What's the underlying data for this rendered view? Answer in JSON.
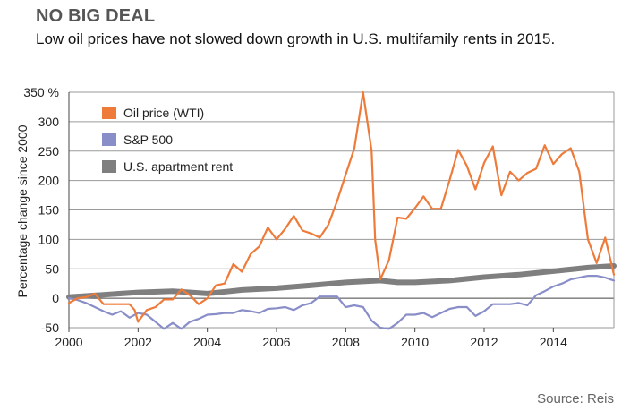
{
  "header": {
    "headline": "NO BIG DEAL",
    "subtitle": "Low oil prices have not slowed down growth in U.S. multifamily rents in 2015."
  },
  "footer": {
    "source": "Source: Reis"
  },
  "chart_data": {
    "type": "line",
    "title": "NO BIG DEAL",
    "subtitle": "Low oil prices have not slowed down growth in U.S. multifamily rents in 2015.",
    "xlabel": "",
    "ylabel": "Percentage change since 2000",
    "xlim": [
      2000,
      2015.75
    ],
    "ylim": [
      -50,
      350
    ],
    "x_ticks": [
      2000,
      2002,
      2004,
      2006,
      2008,
      2010,
      2012,
      2014
    ],
    "y_ticks": [
      -50,
      0,
      50,
      100,
      150,
      200,
      250,
      300,
      350
    ],
    "y_tick_labels": [
      "-50",
      "0",
      "50",
      "100",
      "150",
      "200",
      "250",
      "300",
      "350 %"
    ],
    "grid": "horizontal",
    "legend_position": "top-left",
    "series": [
      {
        "name": "Oil price (WTI)",
        "color": "#ee7b3a",
        "points": [
          [
            2000,
            -8
          ],
          [
            2000.25,
            0
          ],
          [
            2000.5,
            2
          ],
          [
            2000.75,
            8
          ],
          [
            2001,
            -10
          ],
          [
            2001.25,
            -10
          ],
          [
            2001.5,
            -10
          ],
          [
            2001.75,
            -10
          ],
          [
            2001.9,
            -20
          ],
          [
            2002,
            -40
          ],
          [
            2002.25,
            -20
          ],
          [
            2002.5,
            -15
          ],
          [
            2002.75,
            -2
          ],
          [
            2003,
            -2
          ],
          [
            2003.25,
            15
          ],
          [
            2003.5,
            5
          ],
          [
            2003.75,
            -10
          ],
          [
            2004,
            0
          ],
          [
            2004.25,
            22
          ],
          [
            2004.5,
            25
          ],
          [
            2004.75,
            58
          ],
          [
            2005,
            45
          ],
          [
            2005.25,
            75
          ],
          [
            2005.5,
            88
          ],
          [
            2005.75,
            120
          ],
          [
            2006,
            100
          ],
          [
            2006.25,
            118
          ],
          [
            2006.5,
            140
          ],
          [
            2006.75,
            115
          ],
          [
            2007,
            110
          ],
          [
            2007.25,
            103
          ],
          [
            2007.5,
            125
          ],
          [
            2007.75,
            165
          ],
          [
            2008,
            210
          ],
          [
            2008.25,
            255
          ],
          [
            2008.5,
            350
          ],
          [
            2008.75,
            250
          ],
          [
            2008.85,
            100
          ],
          [
            2009,
            32
          ],
          [
            2009.25,
            65
          ],
          [
            2009.5,
            137
          ],
          [
            2009.75,
            135
          ],
          [
            2010,
            153
          ],
          [
            2010.25,
            173
          ],
          [
            2010.5,
            152
          ],
          [
            2010.75,
            152
          ],
          [
            2011,
            200
          ],
          [
            2011.25,
            252
          ],
          [
            2011.5,
            225
          ],
          [
            2011.75,
            185
          ],
          [
            2012,
            230
          ],
          [
            2012.25,
            258
          ],
          [
            2012.5,
            175
          ],
          [
            2012.75,
            215
          ],
          [
            2013,
            200
          ],
          [
            2013.25,
            213
          ],
          [
            2013.5,
            220
          ],
          [
            2013.75,
            260
          ],
          [
            2014,
            228
          ],
          [
            2014.25,
            245
          ],
          [
            2014.5,
            255
          ],
          [
            2014.75,
            215
          ],
          [
            2015,
            100
          ],
          [
            2015.25,
            60
          ],
          [
            2015.5,
            103
          ],
          [
            2015.75,
            40
          ]
        ]
      },
      {
        "name": "S&P 500",
        "color": "#8a8ec8",
        "points": [
          [
            2000,
            0
          ],
          [
            2000.25,
            -3
          ],
          [
            2000.5,
            -8
          ],
          [
            2000.75,
            -15
          ],
          [
            2001,
            -22
          ],
          [
            2001.25,
            -28
          ],
          [
            2001.5,
            -22
          ],
          [
            2001.75,
            -33
          ],
          [
            2002,
            -25
          ],
          [
            2002.25,
            -28
          ],
          [
            2002.5,
            -40
          ],
          [
            2002.75,
            -52
          ],
          [
            2003,
            -42
          ],
          [
            2003.25,
            -52
          ],
          [
            2003.5,
            -40
          ],
          [
            2003.75,
            -35
          ],
          [
            2004,
            -28
          ],
          [
            2004.25,
            -27
          ],
          [
            2004.5,
            -25
          ],
          [
            2004.75,
            -25
          ],
          [
            2005,
            -20
          ],
          [
            2005.25,
            -22
          ],
          [
            2005.5,
            -25
          ],
          [
            2005.75,
            -18
          ],
          [
            2006,
            -17
          ],
          [
            2006.25,
            -15
          ],
          [
            2006.5,
            -20
          ],
          [
            2006.75,
            -12
          ],
          [
            2007,
            -8
          ],
          [
            2007.25,
            3
          ],
          [
            2007.5,
            3
          ],
          [
            2007.75,
            3
          ],
          [
            2008,
            -15
          ],
          [
            2008.25,
            -12
          ],
          [
            2008.5,
            -15
          ],
          [
            2008.75,
            -38
          ],
          [
            2009,
            -50
          ],
          [
            2009.25,
            -52
          ],
          [
            2009.5,
            -42
          ],
          [
            2009.75,
            -28
          ],
          [
            2010,
            -28
          ],
          [
            2010.25,
            -25
          ],
          [
            2010.5,
            -32
          ],
          [
            2010.75,
            -25
          ],
          [
            2011,
            -18
          ],
          [
            2011.25,
            -15
          ],
          [
            2011.5,
            -15
          ],
          [
            2011.75,
            -30
          ],
          [
            2012,
            -22
          ],
          [
            2012.25,
            -10
          ],
          [
            2012.5,
            -10
          ],
          [
            2012.75,
            -10
          ],
          [
            2013,
            -8
          ],
          [
            2013.25,
            -12
          ],
          [
            2013.5,
            5
          ],
          [
            2013.75,
            12
          ],
          [
            2014,
            20
          ],
          [
            2014.25,
            25
          ],
          [
            2014.5,
            32
          ],
          [
            2014.75,
            35
          ],
          [
            2015,
            38
          ],
          [
            2015.25,
            38
          ],
          [
            2015.5,
            35
          ],
          [
            2015.75,
            30
          ]
        ]
      },
      {
        "name": "U.S. apartment rent",
        "color": "#7f7f7f",
        "points": [
          [
            2000,
            2
          ],
          [
            2001,
            6
          ],
          [
            2002,
            10
          ],
          [
            2003,
            12
          ],
          [
            2004,
            8
          ],
          [
            2005,
            14
          ],
          [
            2006,
            17
          ],
          [
            2007,
            22
          ],
          [
            2008,
            27
          ],
          [
            2009,
            30
          ],
          [
            2009.5,
            27
          ],
          [
            2010,
            27
          ],
          [
            2011,
            30
          ],
          [
            2012,
            36
          ],
          [
            2013,
            40
          ],
          [
            2014,
            46
          ],
          [
            2015,
            52
          ],
          [
            2015.75,
            55
          ]
        ]
      }
    ]
  }
}
